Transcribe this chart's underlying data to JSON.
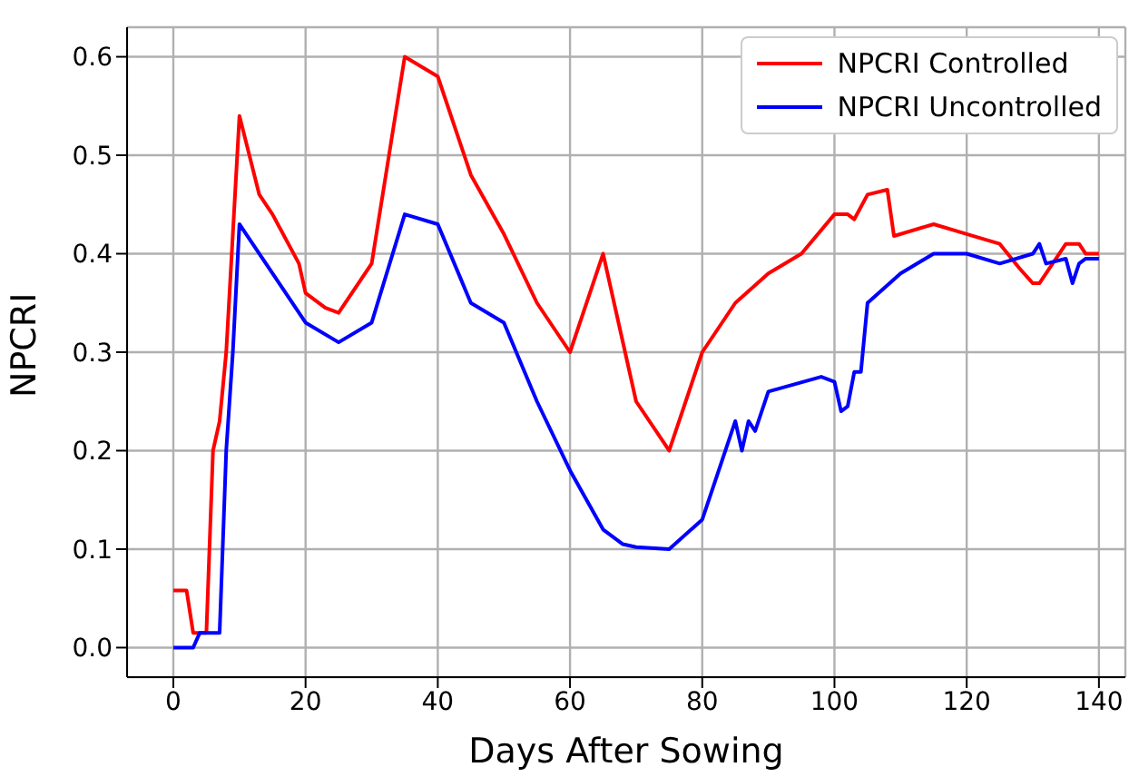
{
  "chart_data": {
    "type": "line",
    "xlabel": "Days After Sowing",
    "ylabel": "NPCRI",
    "xlim": [
      -7,
      144
    ],
    "xticks": [
      0,
      20,
      40,
      60,
      80,
      100,
      120,
      140
    ],
    "ylim": [
      -0.03,
      0.63
    ],
    "yticks": [
      {
        "value": 0,
        "label": "0.0"
      },
      0.1,
      0.2,
      0.3,
      0.4,
      0.5,
      0.6
    ],
    "grid": true,
    "legend": "top right",
    "marker": "none",
    "line_style": "solid",
    "series": [
      {
        "name": "NPCRI Controlled",
        "color": "#ff0000",
        "x": [
          0,
          2,
          3,
          5,
          6,
          7,
          8,
          10,
          13,
          15,
          19,
          20,
          23,
          25,
          30,
          35,
          40,
          45,
          50,
          55,
          60,
          65,
          70,
          75,
          80,
          85,
          90,
          95,
          100,
          102,
          103,
          105,
          108,
          109,
          115,
          120,
          125,
          128,
          130,
          131,
          133,
          135,
          137,
          138,
          140
        ],
        "values": [
          0.058,
          0.058,
          0.015,
          0.015,
          0.2,
          0.23,
          0.3,
          0.54,
          0.46,
          0.44,
          0.39,
          0.36,
          0.345,
          0.34,
          0.39,
          0.6,
          0.58,
          0.48,
          0.42,
          0.35,
          0.3,
          0.4,
          0.25,
          0.2,
          0.3,
          0.35,
          0.38,
          0.4,
          0.44,
          0.44,
          0.435,
          0.46,
          0.465,
          0.418,
          0.43,
          0.42,
          0.41,
          0.385,
          0.37,
          0.37,
          0.39,
          0.41,
          0.41,
          0.4,
          0.4
        ]
      },
      {
        "name": "NPCRI Uncontrolled",
        "color": "#0000ff",
        "x": [
          0,
          3,
          4,
          7,
          8,
          9,
          10,
          15,
          20,
          25,
          30,
          35,
          40,
          45,
          50,
          55,
          60,
          65,
          68,
          70,
          75,
          80,
          85,
          86,
          87,
          88,
          90,
          98,
          100,
          101,
          102,
          103,
          104,
          105,
          110,
          115,
          120,
          125,
          130,
          131,
          132,
          135,
          136,
          137,
          138,
          140
        ],
        "values": [
          0,
          0,
          0.015,
          0.015,
          0.2,
          0.3,
          0.43,
          0.38,
          0.33,
          0.31,
          0.33,
          0.44,
          0.43,
          0.35,
          0.33,
          0.25,
          0.18,
          0.12,
          0.105,
          0.102,
          0.1,
          0.13,
          0.23,
          0.2,
          0.23,
          0.22,
          0.26,
          0.275,
          0.27,
          0.24,
          0.245,
          0.28,
          0.28,
          0.35,
          0.38,
          0.4,
          0.4,
          0.39,
          0.4,
          0.41,
          0.39,
          0.395,
          0.37,
          0.39,
          0.395,
          0.395
        ]
      }
    ]
  }
}
